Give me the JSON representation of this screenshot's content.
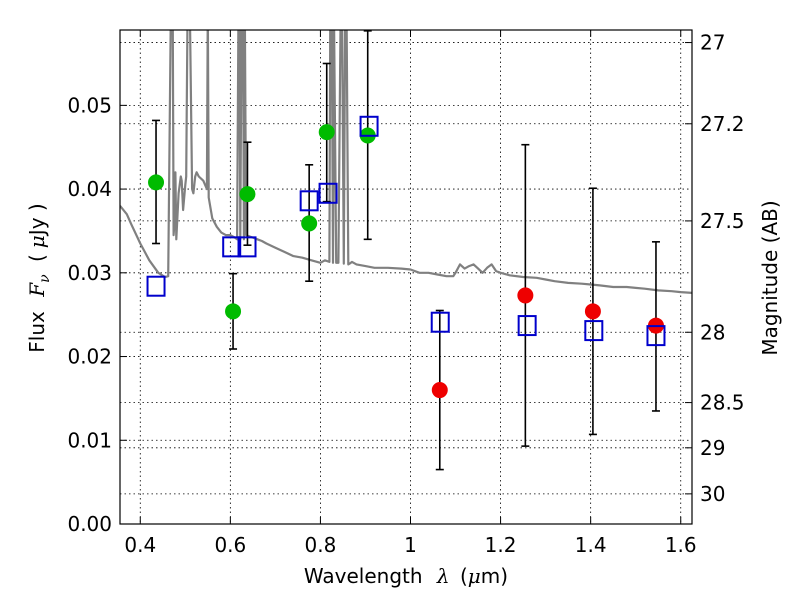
{
  "chart_data": {
    "type": "scatter",
    "xlabel_prefix": "Wavelength",
    "xlabel_symbol": "λ",
    "xlabel_unit_open": "(",
    "xlabel_unit_mu": "μ",
    "xlabel_unit_rest": "m)",
    "ylabel_prefix": "Flux",
    "ylabel_symbol": "F",
    "ylabel_subscript": "ν",
    "ylabel_unit_open": "(",
    "ylabel_unit_mu": "μ",
    "ylabel_unit_rest": "Jy )",
    "y2label": "Magnitude (AB)",
    "xlim": [
      0.355,
      1.625
    ],
    "ylim": [
      0.0,
      0.059
    ],
    "x_ticks": [
      0.4,
      0.6,
      0.8,
      1.0,
      1.2,
      1.4,
      1.6
    ],
    "x_tick_labels": [
      "0.4",
      "0.6",
      "0.8",
      "1",
      "1.2",
      "1.4",
      "1.6"
    ],
    "y_ticks": [
      0.0,
      0.01,
      0.02,
      0.03,
      0.04,
      0.05
    ],
    "y_tick_labels": [
      "0.00",
      "0.01",
      "0.02",
      "0.03",
      "0.04",
      "0.05"
    ],
    "y2_ticks": [
      {
        "label": "27",
        "flux": 0.0575
      },
      {
        "label": "27.2",
        "flux": 0.0478
      },
      {
        "label": "27.5",
        "flux": 0.0362
      },
      {
        "label": "28",
        "flux": 0.0229
      },
      {
        "label": "28.5",
        "flux": 0.0145
      },
      {
        "label": "29",
        "flux": 0.0091
      },
      {
        "label": "30",
        "flux": 0.0036
      }
    ],
    "grid": true,
    "colors": {
      "green": "#00bb00",
      "red": "#ee0000",
      "square": "#0000cc",
      "model": "#808080",
      "errorbar": "#000000"
    },
    "series": [
      {
        "name": "green-points",
        "marker": "circle",
        "color": "#00bb00",
        "points": [
          {
            "x": 0.435,
            "y": 0.0408,
            "yerr_low": 0.0335,
            "yerr_high": 0.0482
          },
          {
            "x": 0.606,
            "y": 0.0254,
            "yerr_low": 0.0209,
            "yerr_high": 0.0299
          },
          {
            "x": 0.638,
            "y": 0.0394,
            "yerr_low": 0.0333,
            "yerr_high": 0.0456
          },
          {
            "x": 0.775,
            "y": 0.0359,
            "yerr_low": 0.029,
            "yerr_high": 0.0429
          },
          {
            "x": 0.814,
            "y": 0.0468,
            "yerr_low": 0.0385,
            "yerr_high": 0.055
          },
          {
            "x": 0.905,
            "y": 0.0464,
            "yerr_low": 0.034,
            "yerr_high": 0.0589
          }
        ]
      },
      {
        "name": "red-points",
        "marker": "circle",
        "color": "#ee0000",
        "points": [
          {
            "x": 1.065,
            "y": 0.016,
            "yerr_low": 0.0065,
            "yerr_high": 0.0255
          },
          {
            "x": 1.255,
            "y": 0.0273,
            "yerr_low": 0.0093,
            "yerr_high": 0.0453
          },
          {
            "x": 1.405,
            "y": 0.0254,
            "yerr_low": 0.0107,
            "yerr_high": 0.0401
          },
          {
            "x": 1.545,
            "y": 0.0237,
            "yerr_low": 0.0135,
            "yerr_high": 0.0337
          }
        ]
      },
      {
        "name": "model-squares",
        "marker": "square",
        "color": "#0000cc",
        "points": [
          {
            "x": 0.435,
            "y": 0.0284
          },
          {
            "x": 0.603,
            "y": 0.0331
          },
          {
            "x": 0.637,
            "y": 0.0331
          },
          {
            "x": 0.775,
            "y": 0.0386
          },
          {
            "x": 0.817,
            "y": 0.0395
          },
          {
            "x": 0.908,
            "y": 0.0475
          },
          {
            "x": 1.066,
            "y": 0.0241
          },
          {
            "x": 1.259,
            "y": 0.0237
          },
          {
            "x": 1.407,
            "y": 0.0231
          },
          {
            "x": 1.545,
            "y": 0.0225
          }
        ]
      }
    ],
    "model_spectrum": {
      "name": "model-sed",
      "color": "#808080",
      "x": [
        0.355,
        0.37,
        0.38,
        0.4,
        0.42,
        0.44,
        0.455,
        0.462,
        0.468,
        0.472,
        0.474,
        0.476,
        0.478,
        0.48,
        0.485,
        0.49,
        0.492,
        0.495,
        0.5,
        0.502,
        0.505,
        0.51,
        0.515,
        0.518,
        0.52,
        0.522,
        0.525,
        0.53,
        0.54,
        0.548,
        0.55,
        0.552,
        0.56,
        0.57,
        0.58,
        0.59,
        0.6,
        0.61,
        0.615,
        0.618,
        0.62,
        0.622,
        0.625,
        0.628,
        0.63,
        0.632,
        0.635,
        0.64,
        0.65,
        0.66,
        0.67,
        0.68,
        0.7,
        0.72,
        0.74,
        0.76,
        0.78,
        0.8,
        0.81,
        0.82,
        0.822,
        0.825,
        0.828,
        0.83,
        0.835,
        0.84,
        0.845,
        0.848,
        0.852,
        0.855,
        0.858,
        0.862,
        0.865,
        0.87,
        0.88,
        0.9,
        0.92,
        0.95,
        0.98,
        1.0,
        1.02,
        1.04,
        1.06,
        1.08,
        1.095,
        1.1,
        1.11,
        1.12,
        1.13,
        1.14,
        1.15,
        1.16,
        1.17,
        1.18,
        1.19,
        1.2,
        1.22,
        1.25,
        1.28,
        1.3,
        1.32,
        1.35,
        1.38,
        1.4,
        1.42,
        1.45,
        1.48,
        1.5,
        1.52,
        1.55,
        1.58,
        1.6,
        1.625
      ],
      "y": [
        0.038,
        0.037,
        0.0358,
        0.0335,
        0.0315,
        0.03,
        0.0295,
        0.0296,
        0.062,
        0.062,
        0.0345,
        0.036,
        0.042,
        0.034,
        0.0395,
        0.0415,
        0.041,
        0.0375,
        0.0405,
        0.0415,
        0.062,
        0.062,
        0.04,
        0.0395,
        0.0405,
        0.0415,
        0.042,
        0.0415,
        0.041,
        0.04,
        0.062,
        0.039,
        0.0365,
        0.0355,
        0.0348,
        0.0345,
        0.0345,
        0.0342,
        0.034,
        0.062,
        0.062,
        0.034,
        0.062,
        0.062,
        0.034,
        0.062,
        0.0345,
        0.0344,
        0.0342,
        0.034,
        0.0338,
        0.0335,
        0.033,
        0.0325,
        0.032,
        0.0318,
        0.0315,
        0.0312,
        0.0315,
        0.0313,
        0.062,
        0.062,
        0.0312,
        0.062,
        0.0312,
        0.0312,
        0.062,
        0.062,
        0.0311,
        0.062,
        0.062,
        0.031,
        0.0311,
        0.0313,
        0.031,
        0.0308,
        0.0306,
        0.0306,
        0.0305,
        0.0304,
        0.03,
        0.03,
        0.0298,
        0.0296,
        0.0296,
        0.03,
        0.031,
        0.0305,
        0.0308,
        0.031,
        0.0305,
        0.03,
        0.0306,
        0.031,
        0.0302,
        0.03,
        0.0297,
        0.0295,
        0.0294,
        0.0292,
        0.029,
        0.0288,
        0.0287,
        0.0286,
        0.0285,
        0.0283,
        0.0283,
        0.0282,
        0.0281,
        0.0279,
        0.0278,
        0.0277,
        0.0276
      ]
    }
  }
}
